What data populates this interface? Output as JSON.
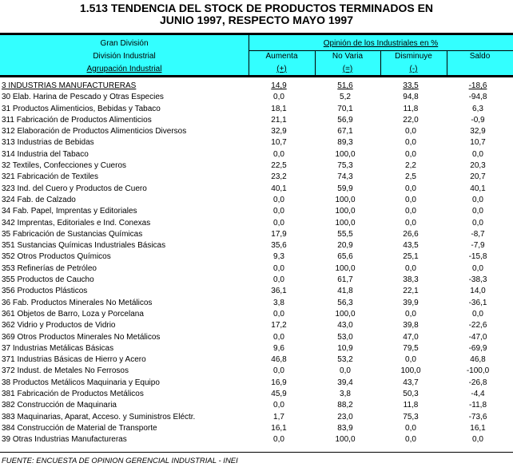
{
  "title": {
    "line1": "1.513 TENDENCIA DEL STOCK DE PRODUCTOS TERMINADOS EN",
    "line2": "JUNIO 1997, RESPECTO MAYO 1997"
  },
  "header": {
    "row_labels": [
      "Gran División",
      "División Industrial",
      "Agrupación Industrial"
    ],
    "group": "Opinión de los Industriales en %",
    "columns": [
      {
        "label": "Aumenta",
        "sign": "(+)"
      },
      {
        "label": "No Varia",
        "sign": "(=)"
      },
      {
        "label": "Disminuye",
        "sign": "(-)"
      },
      {
        "label": "Saldo",
        "sign": ""
      }
    ],
    "background": "#33ffff"
  },
  "rows": [
    {
      "label": "3 INDUSTRIAS MANUFACTURERAS",
      "values": [
        "14,9",
        "51,6",
        "33,5",
        "-18,6"
      ],
      "total": true
    },
    {
      "label": "30 Elab. Harina de Pescado y Otras Especies",
      "values": [
        "0,0",
        "5,2",
        "94,8",
        "-94,8"
      ]
    },
    {
      "label": "31 Productos Alimenticios, Bebidas y Tabaco",
      "values": [
        "18,1",
        "70,1",
        "11,8",
        "6,3"
      ]
    },
    {
      "label": "311 Fabricación de Productos Alimenticios",
      "values": [
        "21,1",
        "56,9",
        "22,0",
        "-0,9"
      ]
    },
    {
      "label": "312 Elaboración de Productos Alimenticios Diversos",
      "values": [
        "32,9",
        "67,1",
        "0,0",
        "32,9"
      ]
    },
    {
      "label": "313 Industrias de Bebidas",
      "values": [
        "10,7",
        "89,3",
        "0,0",
        "10,7"
      ]
    },
    {
      "label": "314 Industria del Tabaco",
      "values": [
        "0,0",
        "100,0",
        "0,0",
        "0,0"
      ]
    },
    {
      "label": "32 Textiles, Confecciones y Cueros",
      "values": [
        "22,5",
        "75,3",
        "2,2",
        "20,3"
      ]
    },
    {
      "label": "321 Fabricación de Textiles",
      "values": [
        "23,2",
        "74,3",
        "2,5",
        "20,7"
      ]
    },
    {
      "label": "323 Ind. del Cuero y Productos de Cuero",
      "values": [
        "40,1",
        "59,9",
        "0,0",
        "40,1"
      ]
    },
    {
      "label": "324 Fab. de Calzado",
      "values": [
        "0,0",
        "100,0",
        "0,0",
        "0,0"
      ]
    },
    {
      "label": "34 Fab. Papel, Imprentas y Editoriales",
      "values": [
        "0,0",
        "100,0",
        "0,0",
        "0,0"
      ]
    },
    {
      "label": "342 Imprentas, Editoriales e Ind. Conexas",
      "values": [
        "0,0",
        "100,0",
        "0,0",
        "0,0"
      ]
    },
    {
      "label": "35 Fabricación de Sustancias Químicas",
      "values": [
        "17,9",
        "55,5",
        "26,6",
        "-8,7"
      ]
    },
    {
      "label": "351 Sustancias Químicas Industriales Básicas",
      "values": [
        "35,6",
        "20,9",
        "43,5",
        "-7,9"
      ]
    },
    {
      "label": "352 Otros Productos Químicos",
      "values": [
        "9,3",
        "65,6",
        "25,1",
        "-15,8"
      ]
    },
    {
      "label": "353 Refinerías de Petróleo",
      "values": [
        "0,0",
        "100,0",
        "0,0",
        "0,0"
      ]
    },
    {
      "label": "355 Productos de Caucho",
      "values": [
        "0,0",
        "61,7",
        "38,3",
        "-38,3"
      ]
    },
    {
      "label": "356 Productos Plásticos",
      "values": [
        "36,1",
        "41,8",
        "22,1",
        "14,0"
      ]
    },
    {
      "label": "36 Fab. Productos Minerales No Metálicos",
      "values": [
        "3,8",
        "56,3",
        "39,9",
        "-36,1"
      ]
    },
    {
      "label": "361 Objetos de Barro, Loza y Porcelana",
      "values": [
        "0,0",
        "100,0",
        "0,0",
        "0,0"
      ]
    },
    {
      "label": "362 Vidrio y Productos de Vidrio",
      "values": [
        "17,2",
        "43,0",
        "39,8",
        "-22,6"
      ]
    },
    {
      "label": "369 Otros Productos Minerales No Metálicos",
      "values": [
        "0,0",
        "53,0",
        "47,0",
        "-47,0"
      ]
    },
    {
      "label": "37 Industrias Metálicas Básicas",
      "values": [
        "9,6",
        "10,9",
        "79,5",
        "-69,9"
      ]
    },
    {
      "label": "371 Industrias Básicas de Hierro y Acero",
      "values": [
        "46,8",
        "53,2",
        "0,0",
        "46,8"
      ]
    },
    {
      "label": "372 Indust. de Metales No Ferrosos",
      "values": [
        "0,0",
        "0,0",
        "100,0",
        "-100,0"
      ]
    },
    {
      "label": "38 Productos Metálicos Maquinaria y Equipo",
      "values": [
        "16,9",
        "39,4",
        "43,7",
        "-26,8"
      ]
    },
    {
      "label": "381 Fabricación de Productos Metálicos",
      "values": [
        "45,9",
        "3,8",
        "50,3",
        "-4,4"
      ]
    },
    {
      "label": "382 Construcción de Maquinaria",
      "values": [
        "0,0",
        "88,2",
        "11,8",
        "-11,8"
      ]
    },
    {
      "label": "383 Maquinarias, Aparat, Acceso. y Suministros Eléctr.",
      "values": [
        "1,7",
        "23,0",
        "75,3",
        "-73,6"
      ]
    },
    {
      "label": "384 Construcción de Material de Transporte",
      "values": [
        "16,1",
        "83,9",
        "0,0",
        "16,1"
      ]
    },
    {
      "label": "39 Otras Industrias Manufactureras",
      "values": [
        "0,0",
        "100,0",
        "0,0",
        "0,0"
      ]
    }
  ],
  "footer": "FUENTE: ENCUESTA DE OPINION GERENCIAL INDUSTRIAL -  INEI"
}
